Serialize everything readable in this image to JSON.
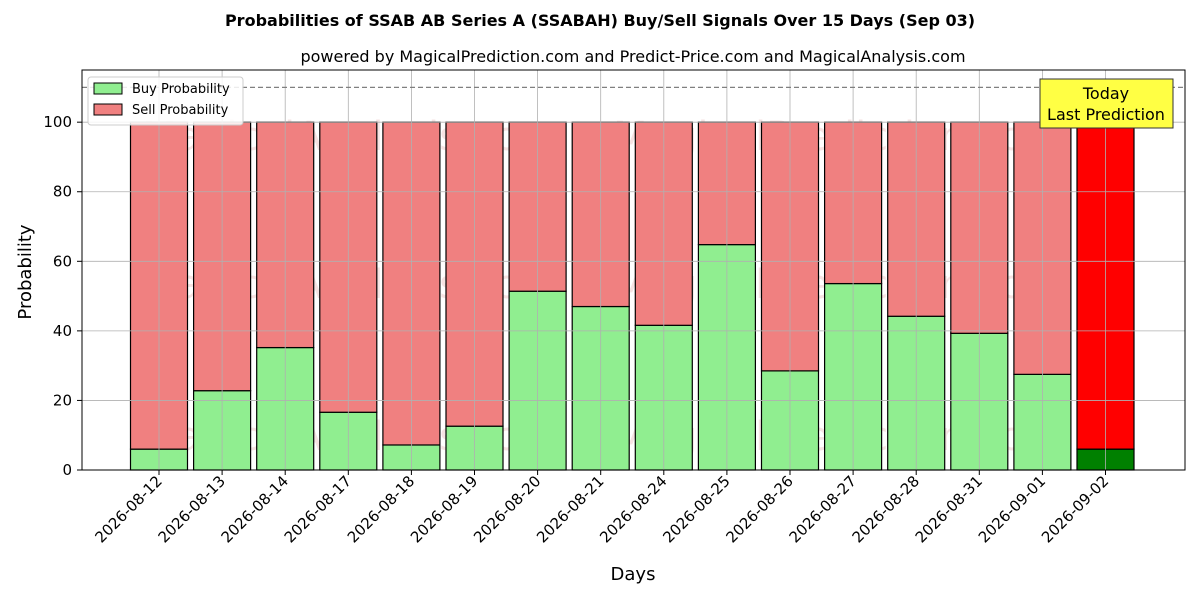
{
  "chart_data": {
    "type": "bar",
    "stacked": true,
    "title": "Probabilities of SSAB AB Series A (SSABAH) Buy/Sell Signals Over 15 Days (Sep 03)",
    "subtitle": "powered by MagicalPrediction.com and Predict-Price.com and MagicalAnalysis.com",
    "xlabel": "Days",
    "ylabel": "Probability",
    "ylim": [
      0,
      115
    ],
    "yticks": [
      0,
      20,
      40,
      60,
      80,
      100
    ],
    "reference_line": 110,
    "grid": true,
    "legend_position": "top-left",
    "categories": [
      "2026-08-12",
      "2026-08-13",
      "2026-08-14",
      "2026-08-17",
      "2026-08-18",
      "2026-08-19",
      "2026-08-20",
      "2026-08-21",
      "2026-08-24",
      "2026-08-25",
      "2026-08-26",
      "2026-08-27",
      "2026-08-28",
      "2026-08-31",
      "2026-09-01",
      "2026-09-02"
    ],
    "series": [
      {
        "name": "Buy Probability",
        "color": "#90ee90",
        "values": [
          6,
          22.8,
          35.2,
          16.6,
          7.2,
          12.6,
          51.4,
          47,
          41.6,
          64.8,
          28.5,
          53.6,
          44.2,
          39.3,
          27.5,
          6
        ]
      },
      {
        "name": "Sell Probability",
        "color": "#f08080",
        "values": [
          94,
          77.2,
          64.8,
          83.4,
          92.8,
          87.4,
          48.6,
          53,
          58.4,
          35.2,
          71.5,
          46.4,
          55.8,
          60.7,
          72.5,
          94
        ]
      }
    ],
    "highlight": {
      "index": 15,
      "buy_color": "#008000",
      "sell_color": "#ff0000",
      "label_lines": [
        "Today",
        "Last Prediction"
      ],
      "label_bg": "#ffff44"
    },
    "watermarks": [
      "MagicalAnalysis.com",
      "MagicalPrediction.com"
    ]
  }
}
